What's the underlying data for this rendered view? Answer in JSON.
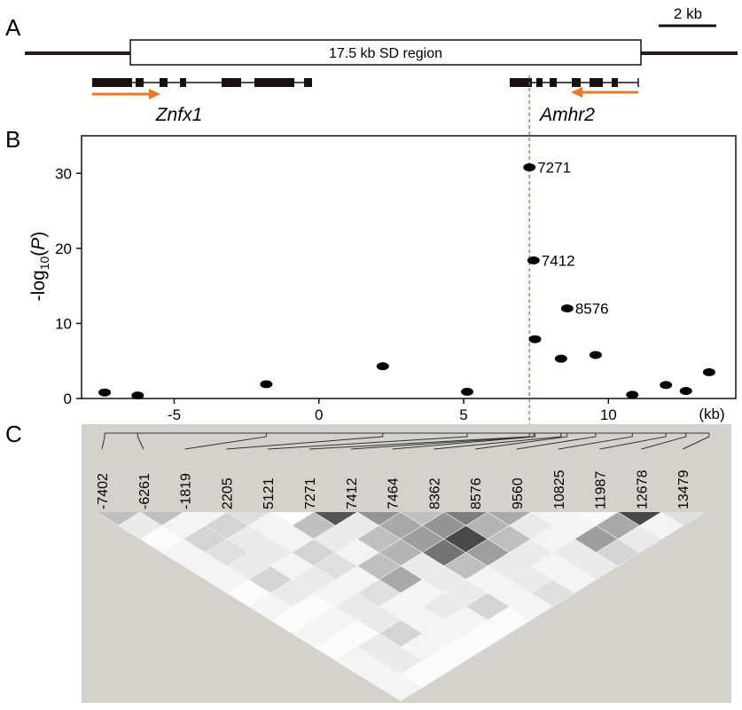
{
  "panel_labels": [
    "A",
    "B",
    "C"
  ],
  "gene_map": {
    "region_label": "17.5 kb SD region",
    "scale_bar": "2 kb",
    "genes": [
      "Znfx1",
      "Amhr2"
    ]
  },
  "chart_data": {
    "type": "scatter",
    "x": [
      -7.402,
      -6.261,
      -1.819,
      2.205,
      5.121,
      7.271,
      7.412,
      7.464,
      8.362,
      8.576,
      9.56,
      10.825,
      11.987,
      12.678,
      13.479
    ],
    "values": [
      0.8,
      0.4,
      1.9,
      4.3,
      0.9,
      30.8,
      18.4,
      7.9,
      5.3,
      12,
      5.8,
      0.5,
      1.8,
      1,
      3.5
    ],
    "point_labels": [
      null,
      null,
      null,
      null,
      null,
      "7271",
      "7412",
      null,
      null,
      "8576",
      null,
      null,
      null,
      null,
      null
    ],
    "color": "#000000",
    "xlim": [
      -8.2,
      14.4
    ],
    "ylim": [
      0,
      35
    ],
    "xticks": [
      -5,
      0,
      5,
      10
    ],
    "yticks": [
      0,
      10,
      20,
      30
    ],
    "xlabel": "(kb)",
    "ylabel": [
      "-log",
      "10",
      "(",
      "P",
      ")"
    ],
    "vline": {
      "x": 7.271,
      "color": "#2ca02c"
    }
  },
  "ld_plot": {
    "markers": [
      "-7402",
      "-6261",
      "-1819",
      "2205",
      "5121",
      "7271",
      "7412",
      "7464",
      "8362",
      "8576",
      "9560",
      "10825",
      "11987",
      "12678",
      "13479"
    ],
    "r2_by_distance": [
      [
        0.3,
        0.3,
        0.05,
        0.15,
        0.0,
        0.8,
        0.5,
        0.3,
        0.6,
        0.4,
        0.05,
        0.02,
        0.85,
        0.15
      ],
      [
        0.1,
        0.05,
        0.2,
        0.05,
        0.3,
        0.1,
        0.4,
        0.5,
        0.35,
        0.1,
        0.05,
        0.4,
        0.05
      ],
      [
        0.02,
        0.2,
        0.1,
        0.05,
        0.1,
        0.3,
        0.45,
        0.85,
        0.3,
        0.05,
        0.45,
        0.1
      ],
      [
        0.05,
        0.15,
        0.1,
        0.2,
        0.05,
        0.35,
        0.65,
        0.45,
        0.1,
        0.1,
        0.2
      ],
      [
        0.05,
        0.1,
        0.05,
        0.15,
        0.3,
        0.1,
        0.3,
        0.1,
        0.05,
        0.1
      ],
      [
        0.05,
        0.2,
        0.1,
        0.05,
        0.4,
        0.1,
        0.05,
        0.1,
        0.05
      ],
      [
        0.02,
        0.1,
        0.05,
        0.15,
        0.05,
        0.1,
        0.05,
        0.15
      ],
      [
        0.05,
        0.02,
        0.1,
        0.05,
        0.1,
        0.2,
        0.05
      ],
      [
        0.02,
        0.05,
        0.1,
        0.05,
        0.05,
        0.02
      ],
      [
        0.05,
        0.02,
        0.2,
        0.05,
        0.02
      ],
      [
        0.02,
        0.1,
        0.05,
        0.02
      ],
      [
        0.05,
        0.1,
        0.02
      ],
      [
        0.05,
        0.02
      ],
      [
        0.05
      ]
    ]
  }
}
